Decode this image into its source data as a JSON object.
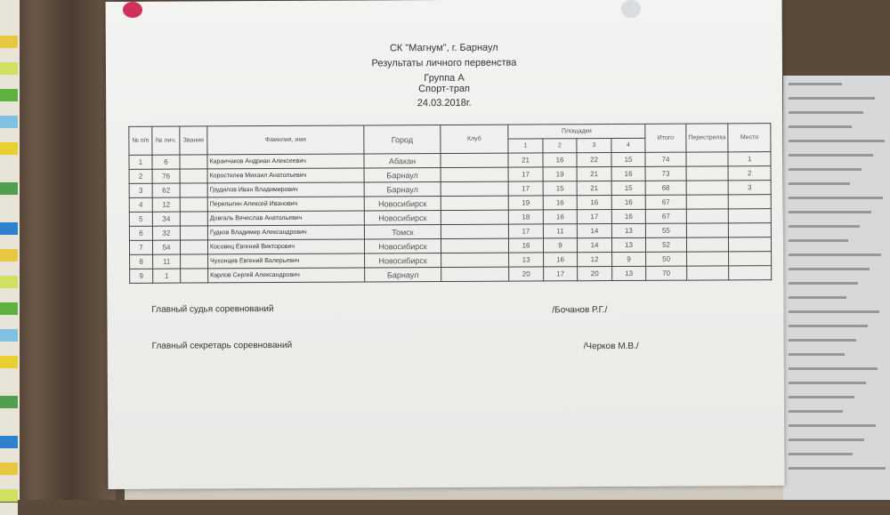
{
  "header": {
    "line1": "СК \"Магнум\", г. Барнаул",
    "line2": "Результаты личного первенства",
    "line3": "Группа А",
    "discipline": "Спорт-трап",
    "date": "24.03.2018г."
  },
  "table": {
    "headers": {
      "num": "№ п/п",
      "bib": "№ лич.",
      "rank": "Звание",
      "name": "Фамилия, имя",
      "city": "Город",
      "club": "Клуб",
      "ranges": "Площадки",
      "range_nums": [
        "1",
        "2",
        "3",
        "4"
      ],
      "total": "Итого",
      "shootoff": "Перестрелка",
      "place": "Место"
    },
    "rows": [
      {
        "num": "1",
        "bib": "6",
        "rank": "",
        "name": "Караичаков Андриан Алексеевич",
        "city": "Абакан",
        "club": "",
        "r": [
          "21",
          "16",
          "22",
          "15"
        ],
        "total": "74",
        "shootoff": "",
        "place": "1"
      },
      {
        "num": "2",
        "bib": "76",
        "rank": "",
        "name": "Коростелев Михаил Анатольевич",
        "city": "Барнаул",
        "club": "",
        "r": [
          "17",
          "19",
          "21",
          "16"
        ],
        "total": "73",
        "shootoff": "",
        "place": "2"
      },
      {
        "num": "3",
        "bib": "62",
        "rank": "",
        "name": "Грудилов Иван Владимирович",
        "city": "Барнаул",
        "club": "",
        "r": [
          "17",
          "15",
          "21",
          "15"
        ],
        "total": "68",
        "shootoff": "",
        "place": "3"
      },
      {
        "num": "4",
        "bib": "12",
        "rank": "",
        "name": "Перелыгин Алексей Иванович",
        "city": "Новосибирск",
        "club": "",
        "r": [
          "19",
          "16",
          "16",
          "16"
        ],
        "total": "67",
        "shootoff": "",
        "place": ""
      },
      {
        "num": "5",
        "bib": "34",
        "rank": "",
        "name": "Довгаль Вячеслав Анатольевич",
        "city": "Новосибирск",
        "club": "",
        "r": [
          "18",
          "16",
          "17",
          "16"
        ],
        "total": "67",
        "shootoff": "",
        "place": ""
      },
      {
        "num": "6",
        "bib": "32",
        "rank": "",
        "name": "Гудков Владимир Александрович",
        "city": "Томск",
        "club": "",
        "r": [
          "17",
          "11",
          "14",
          "13"
        ],
        "total": "55",
        "shootoff": "",
        "place": ""
      },
      {
        "num": "7",
        "bib": "54",
        "rank": "",
        "name": "Косовец Евгений Викторович",
        "city": "Новосибирск",
        "club": "",
        "r": [
          "16",
          "9",
          "14",
          "13"
        ],
        "total": "52",
        "shootoff": "",
        "place": ""
      },
      {
        "num": "8",
        "bib": "11",
        "rank": "",
        "name": "Чухонцев Евгений Валерьевич",
        "city": "Новосибирск",
        "club": "",
        "r": [
          "13",
          "16",
          "12",
          "9"
        ],
        "total": "50",
        "shootoff": "",
        "place": ""
      },
      {
        "num": "9",
        "bib": "1",
        "rank": "",
        "name": "Карлов Сергей Александрович",
        "city": "Барнаул",
        "club": "",
        "r": [
          "20",
          "17",
          "20",
          "13"
        ],
        "total": "70",
        "shootoff": "",
        "place": ""
      }
    ]
  },
  "signatures": {
    "judge_label": "Главный судья соревнований",
    "judge_name": "/Бочанов Р.Г./",
    "secretary_label": "Главный секретарь соревнований",
    "secretary_name": "/Черков М.В./"
  }
}
